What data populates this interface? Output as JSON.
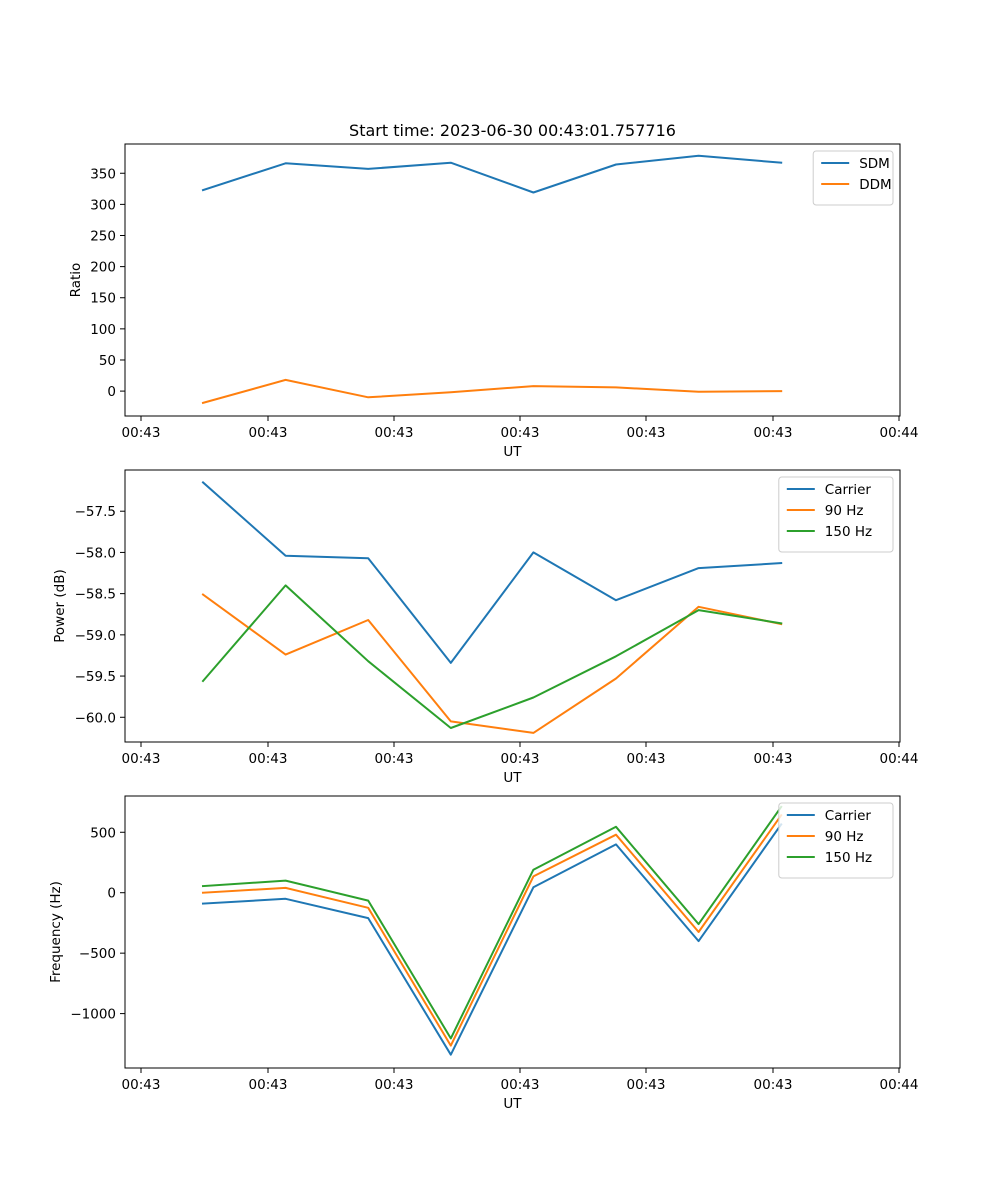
{
  "figure": {
    "title": "Start time: 2023-06-30 00:43:01.757716"
  },
  "colors": {
    "c0": "#1f77b4",
    "c1": "#ff7f0e",
    "c2": "#2ca02c"
  },
  "chart_data": [
    {
      "type": "line",
      "title": "Start time: 2023-06-30 00:43:01.757716",
      "xlabel": "UT",
      "ylabel": "Ratio",
      "x": [
        0,
        1,
        2,
        3,
        4,
        5,
        6,
        7
      ],
      "x_tick_labels": [
        "00:43",
        "00:43",
        "00:43",
        "00:43",
        "00:43",
        "00:43",
        "00:44"
      ],
      "ylim": [
        -40,
        397
      ],
      "yticks": [
        0,
        50,
        100,
        150,
        200,
        250,
        300,
        350
      ],
      "grid": false,
      "legend_position": "top-right",
      "series": [
        {
          "name": "SDM",
          "color": "#1f77b4",
          "values": [
            323,
            366,
            357,
            367,
            319,
            364,
            378,
            367
          ]
        },
        {
          "name": "DDM",
          "color": "#ff7f0e",
          "values": [
            -19,
            18,
            -10,
            -2,
            8,
            6,
            -1,
            0
          ]
        }
      ]
    },
    {
      "type": "line",
      "title": "",
      "xlabel": "UT",
      "ylabel": "Power (dB)",
      "x": [
        0,
        1,
        2,
        3,
        4,
        5,
        6,
        7
      ],
      "x_tick_labels": [
        "00:43",
        "00:43",
        "00:43",
        "00:43",
        "00:43",
        "00:43",
        "00:44"
      ],
      "ylim": [
        -60.3,
        -57.0
      ],
      "yticks": [
        -60.0,
        -59.5,
        -59.0,
        -58.5,
        -58.0,
        -57.5
      ],
      "ytick_labels": [
        "−60.0",
        "−59.5",
        "−59.0",
        "−58.5",
        "−58.0",
        "−57.5"
      ],
      "grid": false,
      "legend_position": "top-right",
      "series": [
        {
          "name": "Carrier",
          "color": "#1f77b4",
          "values": [
            -57.15,
            -58.04,
            -58.07,
            -59.34,
            -58.0,
            -58.58,
            -58.19,
            -58.13
          ]
        },
        {
          "name": "90 Hz",
          "color": "#ff7f0e",
          "values": [
            -58.51,
            -59.24,
            -58.82,
            -60.05,
            -60.19,
            -59.53,
            -58.66,
            -58.87
          ]
        },
        {
          "name": "150 Hz",
          "color": "#2ca02c",
          "values": [
            -59.56,
            -58.4,
            -59.32,
            -60.13,
            -59.76,
            -59.26,
            -58.7,
            -58.86
          ]
        }
      ]
    },
    {
      "type": "line",
      "title": "",
      "xlabel": "UT",
      "ylabel": "Frequency (Hz)",
      "x": [
        0,
        1,
        2,
        3,
        4,
        5,
        6,
        7
      ],
      "x_tick_labels": [
        "00:43",
        "00:43",
        "00:43",
        "00:43",
        "00:43",
        "00:43",
        "00:44"
      ],
      "ylim": [
        -1450,
        800
      ],
      "yticks": [
        -1000,
        -500,
        0,
        500
      ],
      "ytick_labels": [
        "−1000",
        "−500",
        "0",
        "500"
      ],
      "grid": false,
      "legend_position": "top-right",
      "series": [
        {
          "name": "Carrier",
          "color": "#1f77b4",
          "values": [
            -90,
            -50,
            -210,
            -1340,
            45,
            400,
            -400,
            565
          ]
        },
        {
          "name": "90 Hz",
          "color": "#ff7f0e",
          "values": [
            0,
            40,
            -125,
            -1265,
            135,
            480,
            -325,
            640
          ]
        },
        {
          "name": "150 Hz",
          "color": "#2ca02c",
          "values": [
            55,
            100,
            -65,
            -1205,
            190,
            545,
            -260,
            710
          ]
        }
      ]
    }
  ]
}
